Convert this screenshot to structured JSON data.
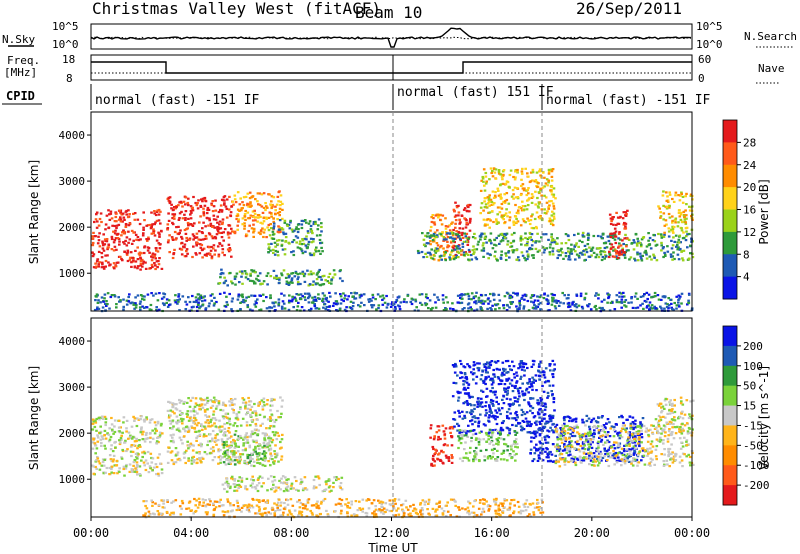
{
  "header": {
    "title": "Christmas Valley West (fitACF)",
    "beam": "Beam 10",
    "date": "26/Sep/2011"
  },
  "status_panel": {
    "nsky_label": "N.Sky",
    "nsky_ticks": [
      "10^5",
      "10^0"
    ],
    "nsearch_label": "N.Search",
    "nsearch_ticks": [
      "10^5",
      "10^0"
    ],
    "freq_label": "Freq.",
    "freq_unit": "[MHz]",
    "freq_ticks": [
      "18",
      "8"
    ],
    "nave_label": "Nave",
    "nave_ticks": [
      "60",
      "0"
    ],
    "cpid_label": "CPID",
    "cpid_segments": [
      {
        "label": "normal (fast) -151 IF",
        "start_hour": 0,
        "end_hour": 12
      },
      {
        "label": "normal (fast) 151 IF",
        "start_hour": 12,
        "end_hour": 18
      },
      {
        "label": "normal (fast) -151 IF",
        "start_hour": 18,
        "end_hour": 24
      }
    ]
  },
  "chart_data": [
    {
      "type": "heatmap",
      "parameter": "Power",
      "ylabel": "Slant Range [km]",
      "yticks": [
        1000,
        2000,
        3000,
        4000
      ],
      "ylim": [
        180,
        4500
      ],
      "xlim": [
        0,
        24
      ],
      "colorbar_label": "Power [dB]",
      "colorbar_ticks": [
        "28",
        "24",
        "20",
        "16",
        "12",
        "8",
        "4"
      ],
      "colorbar_colors": [
        "#e41a1c",
        "#ff5a1a",
        "#ff8c00",
        "#ffd21a",
        "#9ad21a",
        "#2e9a3a",
        "#1e5ab4",
        "#0a14e6"
      ],
      "echo_regions": [
        {
          "t0": 0.0,
          "t1": 2.8,
          "r0": 1100,
          "r1": 2400,
          "level": 0
        },
        {
          "t0": 3.0,
          "t1": 5.6,
          "r0": 1350,
          "r1": 2700,
          "level": 0
        },
        {
          "t0": 5.6,
          "t1": 7.6,
          "r0": 1800,
          "r1": 2800,
          "level": 2
        },
        {
          "t0": 7.0,
          "t1": 9.2,
          "r0": 1400,
          "r1": 2200,
          "level": 5
        },
        {
          "t0": 5.0,
          "t1": 10.0,
          "r0": 750,
          "r1": 1100,
          "level": 5
        },
        {
          "t0": 0.0,
          "t1": 24.0,
          "r0": 200,
          "r1": 600,
          "level": 6
        },
        {
          "t0": 13.5,
          "t1": 14.5,
          "r0": 1300,
          "r1": 2300,
          "level": 2
        },
        {
          "t0": 14.4,
          "t1": 15.1,
          "r0": 1400,
          "r1": 2600,
          "level": 0
        },
        {
          "t0": 15.5,
          "t1": 18.5,
          "r0": 2000,
          "r1": 3300,
          "level": 3
        },
        {
          "t0": 13.0,
          "t1": 24.0,
          "r0": 1300,
          "r1": 1900,
          "level": 5
        },
        {
          "t0": 20.6,
          "t1": 21.4,
          "r0": 1350,
          "r1": 2400,
          "level": 0
        },
        {
          "t0": 22.6,
          "t1": 24.0,
          "r0": 1900,
          "r1": 2800,
          "level": 3
        }
      ]
    },
    {
      "type": "heatmap",
      "parameter": "Velocity",
      "ylabel": "Slant Range [km]",
      "yticks": [
        1000,
        2000,
        3000,
        4000
      ],
      "ylim": [
        180,
        4500
      ],
      "xlim": [
        0,
        24
      ],
      "xticks": [
        "00:00",
        "04:00",
        "08:00",
        "12:00",
        "16:00",
        "20:00",
        "00:00"
      ],
      "xlabel": "Time UT",
      "colorbar_label": "Velocity [m s^-1]",
      "colorbar_ticks": [
        "200",
        "100",
        "50",
        "15",
        "-15",
        "-50",
        "-100",
        "-200"
      ],
      "colorbar_colors": [
        "#0a14e6",
        "#1e5ab4",
        "#2e9a3a",
        "#7ad23a",
        "#c8c8c8",
        "#ffb41a",
        "#ff8c00",
        "#ff5a1a",
        "#e41a1c"
      ],
      "echo_regions": [
        {
          "t0": 0.0,
          "t1": 2.8,
          "r0": 1100,
          "r1": 2400,
          "level": 4
        },
        {
          "t0": 3.0,
          "t1": 7.6,
          "r0": 1350,
          "r1": 2800,
          "level": 4
        },
        {
          "t0": 5.2,
          "t1": 7.2,
          "r0": 1300,
          "r1": 2000,
          "level": 3
        },
        {
          "t0": 5.0,
          "t1": 10.0,
          "r0": 750,
          "r1": 1100,
          "level": 4
        },
        {
          "t0": 2.0,
          "t1": 18.0,
          "r0": 200,
          "r1": 600,
          "level": 5
        },
        {
          "t0": 13.5,
          "t1": 14.4,
          "r0": 1300,
          "r1": 2200,
          "level": 8
        },
        {
          "t0": 14.4,
          "t1": 18.5,
          "r0": 2000,
          "r1": 3600,
          "level": 0
        },
        {
          "t0": 14.6,
          "t1": 17.0,
          "r0": 1400,
          "r1": 2100,
          "level": 3
        },
        {
          "t0": 17.5,
          "t1": 22.0,
          "r0": 1400,
          "r1": 2400,
          "level": 0
        },
        {
          "t0": 18.5,
          "t1": 24.0,
          "r0": 1300,
          "r1": 2200,
          "level": 4
        },
        {
          "t0": 22.5,
          "t1": 24.0,
          "r0": 2000,
          "r1": 2800,
          "level": 4
        }
      ]
    }
  ]
}
